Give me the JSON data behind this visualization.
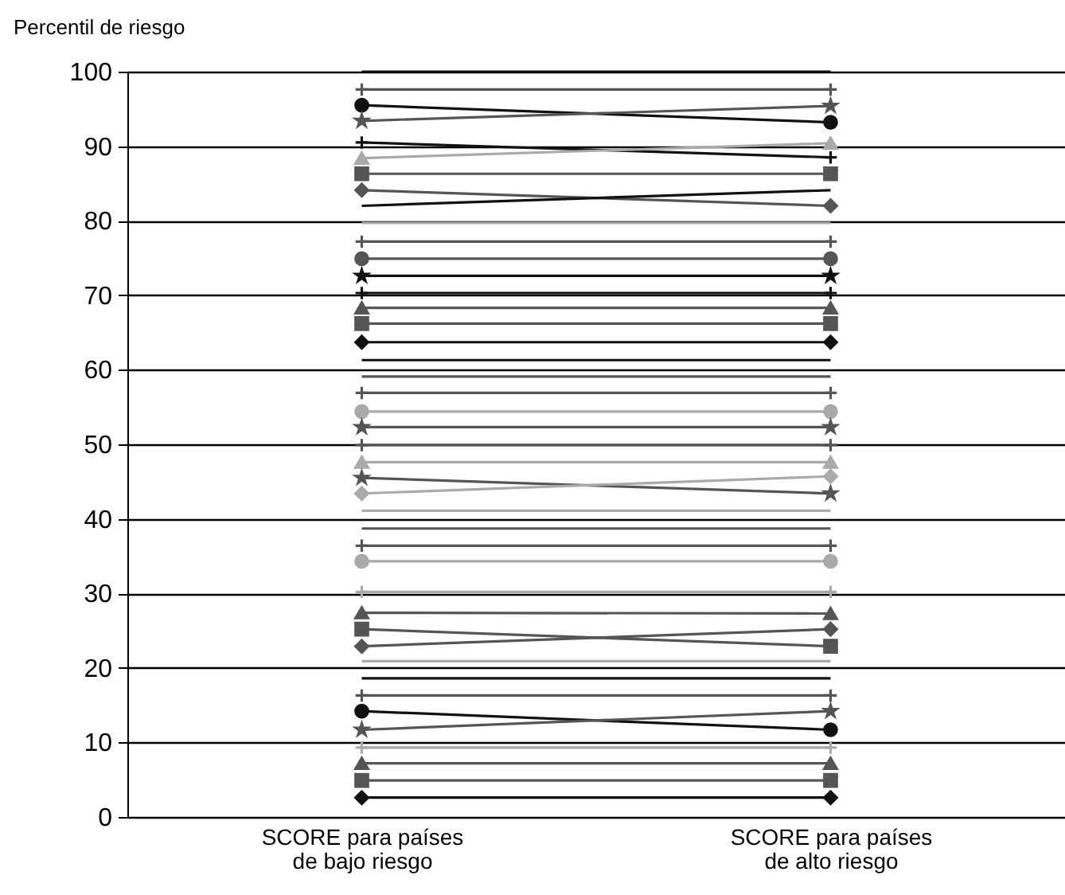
{
  "chart_data": {
    "type": "line",
    "ylabel": "Percentil de riesgo",
    "categories": [
      "SCORE para países de bajo riesgo",
      "SCORE para países de alto riesgo"
    ],
    "ylim": [
      0,
      100
    ],
    "yticks": [
      0,
      10,
      20,
      30,
      40,
      50,
      60,
      70,
      80,
      90,
      100
    ],
    "grid": "y",
    "legend": false,
    "line_style": "solid",
    "series": [
      {
        "color": "#111111",
        "marker": "none",
        "values": [
          100,
          100
        ]
      },
      {
        "color": "#555555",
        "marker": "cross",
        "values": [
          97.6,
          97.6
        ]
      },
      {
        "color": "#111111",
        "marker": "circle",
        "values": [
          95.5,
          93.2
        ]
      },
      {
        "color": "#555555",
        "marker": "star",
        "values": [
          93.4,
          95.4
        ]
      },
      {
        "color": "#111111",
        "marker": "cross",
        "values": [
          90.5,
          88.5
        ]
      },
      {
        "color": "#aaaaaa",
        "marker": "triangle",
        "values": [
          88.4,
          90.4
        ]
      },
      {
        "color": "#555555",
        "marker": "square",
        "values": [
          86.3,
          86.3
        ]
      },
      {
        "color": "#555555",
        "marker": "diamond",
        "values": [
          84.1,
          82.0
        ]
      },
      {
        "color": "#111111",
        "marker": "none",
        "values": [
          82.0,
          84.1
        ]
      },
      {
        "color": "#aaaaaa",
        "marker": "none",
        "values": [
          79.7,
          79.7
        ]
      },
      {
        "color": "#555555",
        "marker": "cross",
        "values": [
          77.2,
          77.2
        ]
      },
      {
        "color": "#555555",
        "marker": "circle",
        "values": [
          74.9,
          74.9
        ]
      },
      {
        "color": "#111111",
        "marker": "star",
        "values": [
          72.6,
          72.6
        ]
      },
      {
        "color": "#111111",
        "marker": "cross",
        "values": [
          70.3,
          70.3
        ]
      },
      {
        "color": "#555555",
        "marker": "triangle",
        "values": [
          68.3,
          68.3
        ]
      },
      {
        "color": "#555555",
        "marker": "square",
        "values": [
          66.2,
          66.2
        ]
      },
      {
        "color": "#111111",
        "marker": "diamond",
        "values": [
          63.7,
          63.7
        ]
      },
      {
        "color": "#111111",
        "marker": "none",
        "values": [
          61.3,
          61.3
        ]
      },
      {
        "color": "#555555",
        "marker": "none",
        "values": [
          59.1,
          59.1
        ]
      },
      {
        "color": "#555555",
        "marker": "cross",
        "values": [
          56.9,
          56.9
        ]
      },
      {
        "color": "#aaaaaa",
        "marker": "circle",
        "values": [
          54.4,
          54.4
        ]
      },
      {
        "color": "#555555",
        "marker": "star",
        "values": [
          52.3,
          52.3
        ]
      },
      {
        "color": "#555555",
        "marker": "cross",
        "values": [
          49.9,
          49.9
        ]
      },
      {
        "color": "#aaaaaa",
        "marker": "triangle",
        "values": [
          47.6,
          47.6
        ]
      },
      {
        "color": "#555555",
        "marker": "star",
        "values": [
          45.5,
          43.4
        ]
      },
      {
        "color": "#aaaaaa",
        "marker": "diamond",
        "values": [
          43.4,
          45.7
        ]
      },
      {
        "color": "#aaaaaa",
        "marker": "none",
        "values": [
          41.1,
          41.1
        ]
      },
      {
        "color": "#555555",
        "marker": "none",
        "values": [
          38.7,
          38.7
        ]
      },
      {
        "color": "#555555",
        "marker": "cross",
        "values": [
          36.4,
          36.4
        ]
      },
      {
        "color": "#aaaaaa",
        "marker": "circle",
        "values": [
          34.3,
          34.3
        ]
      },
      {
        "color": "#aaaaaa",
        "marker": "cross",
        "values": [
          30.2,
          30.2
        ]
      },
      {
        "color": "#555555",
        "marker": "triangle",
        "values": [
          27.4,
          27.3
        ]
      },
      {
        "color": "#555555",
        "marker": "square",
        "values": [
          25.2,
          22.9
        ]
      },
      {
        "color": "#555555",
        "marker": "diamond",
        "values": [
          22.9,
          25.2
        ]
      },
      {
        "color": "#aaaaaa",
        "marker": "none",
        "values": [
          20.9,
          20.9
        ]
      },
      {
        "color": "#111111",
        "marker": "none",
        "values": [
          18.6,
          18.6
        ]
      },
      {
        "color": "#555555",
        "marker": "cross",
        "values": [
          16.3,
          16.3
        ]
      },
      {
        "color": "#111111",
        "marker": "circle",
        "values": [
          14.2,
          11.7
        ]
      },
      {
        "color": "#555555",
        "marker": "star",
        "values": [
          11.7,
          14.2
        ]
      },
      {
        "color": "#aaaaaa",
        "marker": "cross",
        "values": [
          9.3,
          9.3
        ]
      },
      {
        "color": "#555555",
        "marker": "triangle",
        "values": [
          7.2,
          7.2
        ]
      },
      {
        "color": "#555555",
        "marker": "square",
        "values": [
          4.9,
          4.9
        ]
      },
      {
        "color": "#111111",
        "marker": "diamond",
        "values": [
          2.6,
          2.6
        ]
      }
    ]
  }
}
